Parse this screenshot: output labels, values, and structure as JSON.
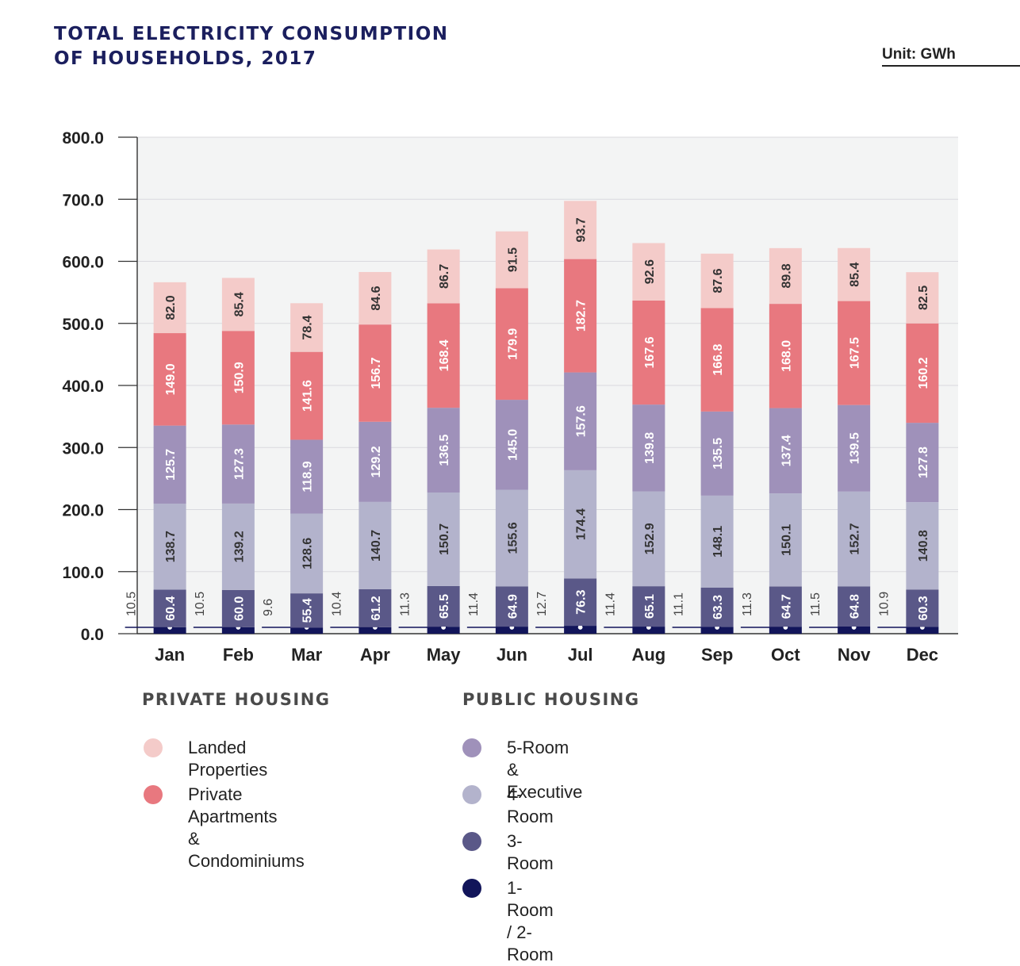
{
  "title_line1": "TOTAL ELECTRICITY CONSUMPTION",
  "title_line2": "OF HOUSEHOLDS, 2017",
  "unit_label": "Unit: GWh",
  "chart_data": {
    "type": "bar",
    "stacked": true,
    "categories": [
      "Jan",
      "Feb",
      "Mar",
      "Apr",
      "May",
      "Jun",
      "Jul",
      "Aug",
      "Sep",
      "Oct",
      "Nov",
      "Dec"
    ],
    "series": [
      {
        "name": "1-Room / 2-Room",
        "color": "#12155a",
        "values": [
          10.5,
          10.5,
          9.6,
          10.4,
          11.3,
          11.4,
          12.7,
          11.4,
          11.1,
          11.3,
          11.5,
          10.9
        ]
      },
      {
        "name": "3-Room",
        "color": "#5a5888",
        "values": [
          60.4,
          60.0,
          55.4,
          61.2,
          65.5,
          64.9,
          76.3,
          65.1,
          63.3,
          64.7,
          64.8,
          60.3
        ]
      },
      {
        "name": "4-Room",
        "color": "#b3b3cc",
        "values": [
          138.7,
          139.2,
          128.6,
          140.7,
          150.7,
          155.6,
          174.4,
          152.9,
          148.1,
          150.1,
          152.7,
          140.8
        ]
      },
      {
        "name": "5-Room & Executive",
        "color": "#9f91ba",
        "values": [
          125.7,
          127.3,
          118.9,
          129.2,
          136.5,
          145.0,
          157.6,
          139.8,
          135.5,
          137.4,
          139.5,
          127.8
        ]
      },
      {
        "name": "Private Apartments & Condominiums",
        "color": "#e8787f",
        "values": [
          149.0,
          150.9,
          141.6,
          156.7,
          168.4,
          179.9,
          182.7,
          167.6,
          166.8,
          168.0,
          167.5,
          160.2
        ]
      },
      {
        "name": "Landed Properties",
        "color": "#f4cbc9",
        "values": [
          82.0,
          85.4,
          78.4,
          84.6,
          86.7,
          91.5,
          93.7,
          92.6,
          87.6,
          89.8,
          85.4,
          82.5
        ]
      }
    ],
    "value_labels": {
      "1-Room / 2-Room": [
        "10.5",
        "10.5",
        "9.6",
        "10.4",
        "11.3",
        "11.4",
        "12.7",
        "11.4",
        "11.1",
        "11.3",
        "11.5",
        "10.9"
      ],
      "3-Room": [
        "60.4",
        "60.0",
        "55.4",
        "61.2",
        "65.5",
        "64.9",
        "76.3",
        "65.1",
        "63.3",
        "64.7",
        "64.8",
        "60.3"
      ],
      "4-Room": [
        "138.7",
        "139.2",
        "128.6",
        "140.7",
        "150.7",
        "155.6",
        "174.4",
        "152.9",
        "148.1",
        "150.1",
        "152.7",
        "140.8"
      ],
      "5-Room & Executive": [
        "125.7",
        "127.3",
        "118.9",
        "129.2",
        "136.5",
        "145.0",
        "157.6",
        "139.8",
        "135.5",
        "137.4",
        "139.5",
        "127.8"
      ],
      "Private Apartments & Condominiums": [
        "149.0",
        "150.9",
        "141.6",
        "156.7",
        "168.4",
        "179.9",
        "182.7",
        "167.6",
        "166.8",
        "168.0",
        "167.5",
        "160.2"
      ],
      "Landed Properties": [
        "82.0",
        "85.4",
        "78.4",
        "84.6",
        "86.7",
        "91.5",
        "93.7",
        "92.6",
        "87.6",
        "89.8",
        "85.4",
        "82.5"
      ]
    },
    "ylim": [
      0,
      800
    ],
    "yticks": [
      0,
      100,
      200,
      300,
      400,
      500,
      600,
      700,
      800
    ],
    "ytick_labels": [
      "0.0",
      "100.0",
      "200.0",
      "300.0",
      "400.0",
      "500.0",
      "600.0",
      "700.0",
      "800.0"
    ],
    "xlabel": "",
    "ylabel": "",
    "grid": true,
    "plot_background": "#f3f4f4",
    "grid_color": "#d9d9de",
    "label_text_color_dark": "#333333",
    "label_text_color_light": "#ffffff",
    "callout_color": "#12155a"
  },
  "legend": {
    "private_heading": "PRIVATE HOUSING",
    "public_heading": "PUBLIC HOUSING",
    "private_items": [
      {
        "label": "Landed Properties",
        "color": "#f4cbc9"
      },
      {
        "label": "Private Apartments\n& Condominiums",
        "color": "#e8787f"
      }
    ],
    "public_items": [
      {
        "label": "5-Room & Executive",
        "color": "#9f91ba"
      },
      {
        "label": "4-Room",
        "color": "#b3b3cc"
      },
      {
        "label": "3-Room",
        "color": "#5a5888"
      },
      {
        "label": "1-Room / 2-Room",
        "color": "#12155a"
      }
    ]
  }
}
